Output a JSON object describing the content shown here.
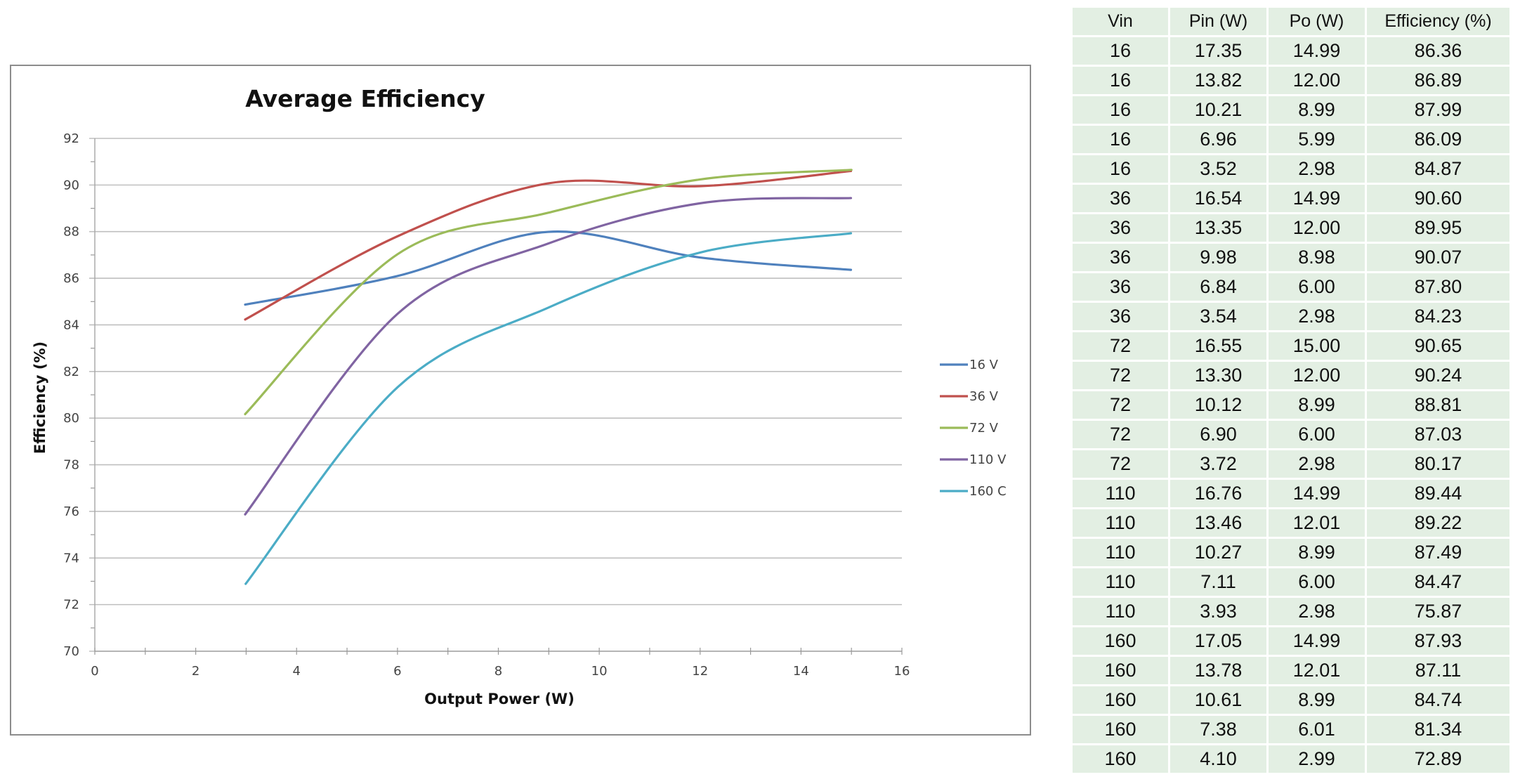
{
  "chart_data": {
    "type": "line",
    "title": "Average Efficiency",
    "xlabel": "Output Power (W)",
    "ylabel": "Efficiency (%)",
    "xlim": [
      0,
      16
    ],
    "ylim": [
      70,
      92
    ],
    "xticks": [
      0,
      2,
      4,
      6,
      8,
      10,
      12,
      14,
      16
    ],
    "yticks": [
      70,
      72,
      74,
      76,
      78,
      80,
      82,
      84,
      86,
      88,
      90,
      92
    ],
    "grid": true,
    "smooth": true,
    "legend_position": "right",
    "series": [
      {
        "name": "16 V",
        "color": "#4F81BD",
        "x": [
          2.98,
          5.99,
          8.99,
          12.0,
          14.99
        ],
        "y": [
          84.87,
          86.09,
          87.99,
          86.89,
          86.36
        ]
      },
      {
        "name": "36 V",
        "color": "#C0504D",
        "x": [
          2.98,
          6.0,
          8.98,
          12.0,
          14.99
        ],
        "y": [
          84.23,
          87.8,
          90.07,
          89.95,
          90.6
        ]
      },
      {
        "name": "72 V",
        "color": "#9BBB59",
        "x": [
          2.98,
          6.0,
          8.99,
          12.0,
          15.0
        ],
        "y": [
          80.17,
          87.03,
          88.81,
          90.24,
          90.65
        ]
      },
      {
        "name": "110 V",
        "color": "#8064A2",
        "x": [
          2.98,
          6.0,
          8.99,
          12.01,
          14.99
        ],
        "y": [
          75.87,
          84.47,
          87.49,
          89.22,
          89.44
        ]
      },
      {
        "name": "160 C",
        "color": "#4BACC6",
        "x": [
          2.99,
          6.01,
          8.99,
          12.01,
          14.99
        ],
        "y": [
          72.89,
          81.34,
          84.74,
          87.11,
          87.93
        ]
      }
    ]
  },
  "table": {
    "headers": [
      "Vin",
      "Pin (W)",
      "Po (W)",
      "Efficiency (%)"
    ],
    "rows": [
      [
        "16",
        "17.35",
        "14.99",
        "86.36"
      ],
      [
        "16",
        "13.82",
        "12.00",
        "86.89"
      ],
      [
        "16",
        "10.21",
        "8.99",
        "87.99"
      ],
      [
        "16",
        "6.96",
        "5.99",
        "86.09"
      ],
      [
        "16",
        "3.52",
        "2.98",
        "84.87"
      ],
      [
        "36",
        "16.54",
        "14.99",
        "90.60"
      ],
      [
        "36",
        "13.35",
        "12.00",
        "89.95"
      ],
      [
        "36",
        "9.98",
        "8.98",
        "90.07"
      ],
      [
        "36",
        "6.84",
        "6.00",
        "87.80"
      ],
      [
        "36",
        "3.54",
        "2.98",
        "84.23"
      ],
      [
        "72",
        "16.55",
        "15.00",
        "90.65"
      ],
      [
        "72",
        "13.30",
        "12.00",
        "90.24"
      ],
      [
        "72",
        "10.12",
        "8.99",
        "88.81"
      ],
      [
        "72",
        "6.90",
        "6.00",
        "87.03"
      ],
      [
        "72",
        "3.72",
        "2.98",
        "80.17"
      ],
      [
        "110",
        "16.76",
        "14.99",
        "89.44"
      ],
      [
        "110",
        "13.46",
        "12.01",
        "89.22"
      ],
      [
        "110",
        "10.27",
        "8.99",
        "87.49"
      ],
      [
        "110",
        "7.11",
        "6.00",
        "84.47"
      ],
      [
        "110",
        "3.93",
        "2.98",
        "75.87"
      ],
      [
        "160",
        "17.05",
        "14.99",
        "87.93"
      ],
      [
        "160",
        "13.78",
        "12.01",
        "87.11"
      ],
      [
        "160",
        "10.61",
        "8.99",
        "84.74"
      ],
      [
        "160",
        "7.38",
        "6.01",
        "81.34"
      ],
      [
        "160",
        "4.10",
        "2.99",
        "72.89"
      ]
    ]
  }
}
